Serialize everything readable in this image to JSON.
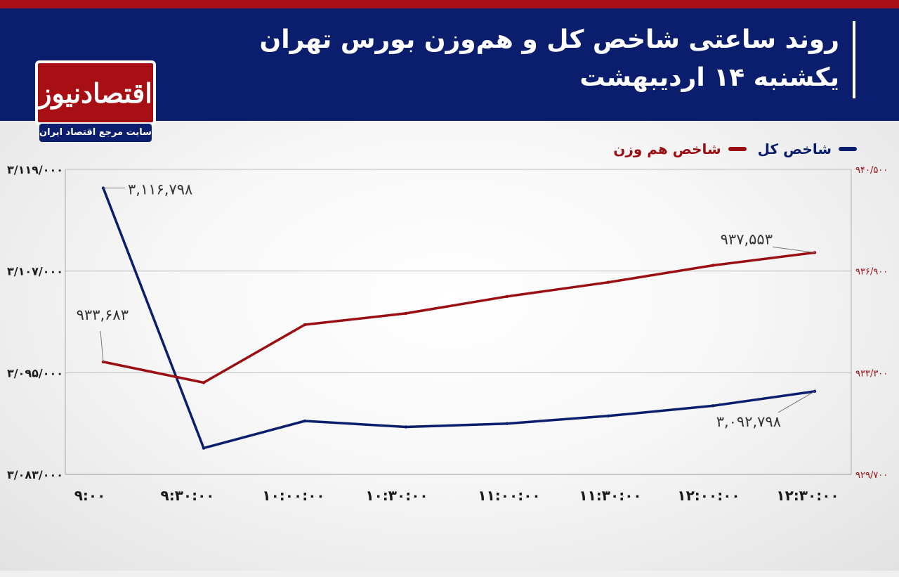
{
  "header": {
    "title": "روند ساعتی شاخص کل و هم‌وزن بورس تهران",
    "subtitle": "یکشنبه ۱۴ اردیبهشت"
  },
  "logo": {
    "name": "اقتصادنیوز",
    "tagline": "سایت مرجع اقتصاد ایران"
  },
  "colors": {
    "header_bg": "#0b1e6d",
    "accent_red": "#a80f14",
    "series_total": "#0b1e6d",
    "series_equal": "#9b0e12"
  },
  "chart_data": {
    "type": "line",
    "categories": [
      "9:00",
      "9:30:00",
      "10:00:00",
      "10:30:00",
      "11:00:00",
      "11:30:00",
      "12:00:00",
      "12:30:00"
    ],
    "tick_labels_x": [
      "۹:۰۰",
      "۹:۳۰:۰۰",
      "۱۰:۰۰:۰۰",
      "۱۰:۳۰:۰۰",
      "۱۱:۰۰:۰۰",
      "۱۱:۳۰:۰۰",
      "۱۲:۰۰:۰۰",
      "۱۲:۳۰:۰۰"
    ],
    "left_axis": {
      "ylim": [
        3083000,
        3119000
      ],
      "ticks": [
        3083000,
        3095000,
        3107000,
        3119000
      ],
      "tick_labels": [
        "۳/۰۸۳/۰۰۰",
        "۳/۰۹۵/۰۰۰",
        "۳/۱۰۷/۰۰۰",
        "۳/۱۱۹/۰۰۰"
      ]
    },
    "right_axis": {
      "ylim": [
        929700,
        940500
      ],
      "ticks": [
        929700,
        933300,
        936900,
        940500
      ],
      "tick_labels": [
        "۹۲۹/۷۰۰",
        "۹۳۳/۳۰۰",
        "۹۳۶/۹۰۰",
        "۹۴۰/۵۰۰"
      ]
    },
    "series": [
      {
        "name": "شاخص کل",
        "axis": "left",
        "color": "#0b1e6d",
        "values": [
          3116798,
          3086100,
          3089300,
          3088600,
          3089000,
          3089900,
          3091100,
          3092798
        ]
      },
      {
        "name": "شاخص هم وزن",
        "axis": "right",
        "color": "#9b0e12",
        "values": [
          933683,
          932950,
          935000,
          935400,
          936000,
          936500,
          937100,
          937553
        ]
      }
    ],
    "annotations": [
      {
        "series": 0,
        "index": 0,
        "text": "۳,۱۱۶,۷۹۸"
      },
      {
        "series": 0,
        "index": 7,
        "text": "۳,۰۹۲,۷۹۸"
      },
      {
        "series": 1,
        "index": 0,
        "text": "۹۳۳,۶۸۳"
      },
      {
        "series": 1,
        "index": 7,
        "text": "۹۳۷,۵۵۳"
      }
    ],
    "grid": true,
    "legend_position": "top-right"
  }
}
